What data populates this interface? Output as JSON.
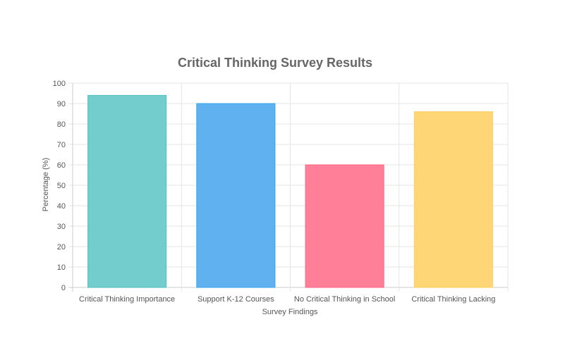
{
  "chart_data": {
    "type": "bar",
    "title": "Critical Thinking Survey Results",
    "xlabel": "Survey Findings",
    "ylabel": "Percentage (%)",
    "ylim": [
      0,
      100
    ],
    "yticks": [
      0,
      10,
      20,
      30,
      40,
      50,
      60,
      70,
      80,
      90,
      100
    ],
    "grid": true,
    "legend": "none",
    "categories": [
      "Critical Thinking Importance",
      "Support K-12 Courses",
      "No Critical Thinking in School",
      "Critical Thinking Lacking"
    ],
    "values": [
      94,
      90,
      60,
      86
    ],
    "colors": [
      {
        "fill": "#73cdcc",
        "stroke": "#4bc0c0"
      },
      {
        "fill": "#5fb1f0",
        "stroke": "#36a2eb"
      },
      {
        "fill": "#ff7f99",
        "stroke": "#ff6384"
      },
      {
        "fill": "#ffd675",
        "stroke": "#ffce56"
      }
    ]
  }
}
